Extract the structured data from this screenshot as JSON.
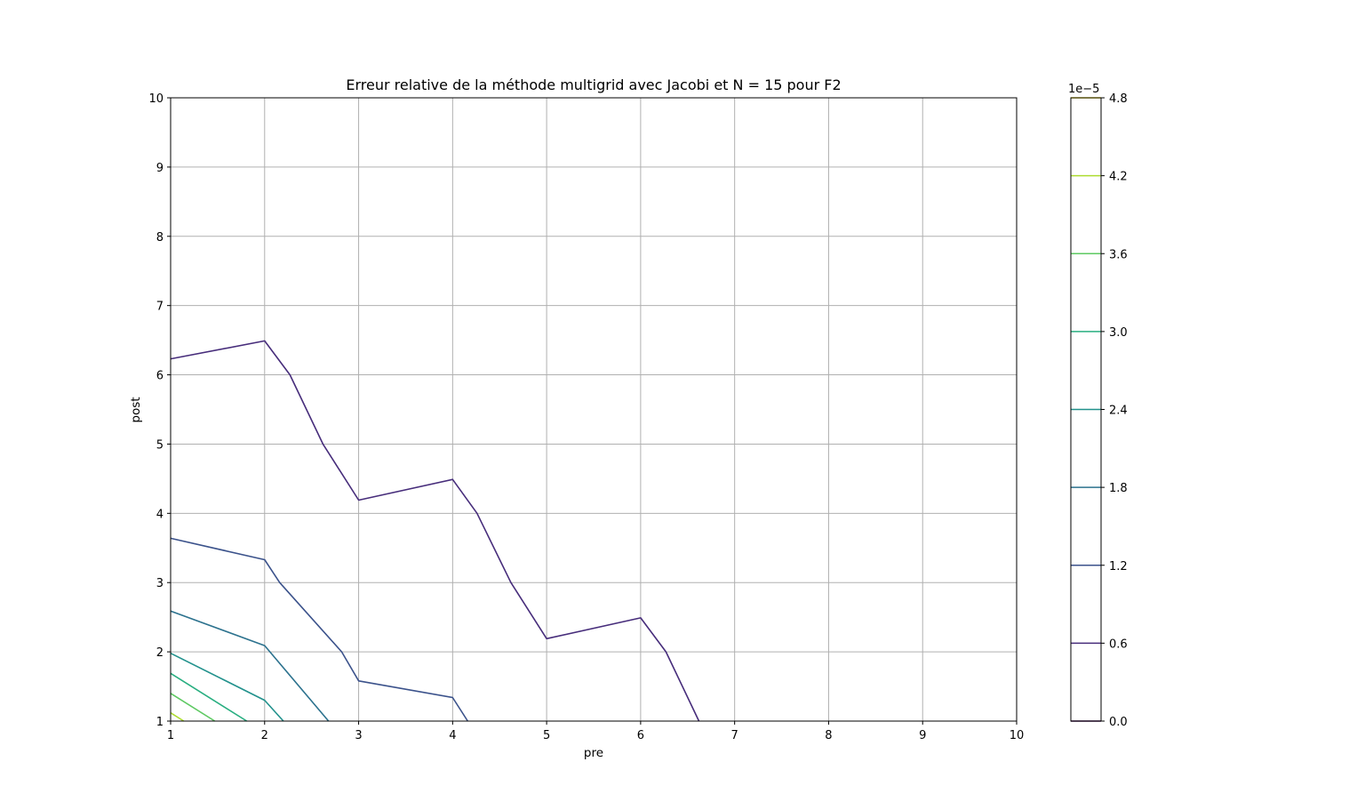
{
  "chart_data": {
    "type": "contour",
    "title": "Erreur relative de la méthode multigrid avec Jacobi et N = 15 pour F2",
    "xlabel": "pre",
    "ylabel": "post",
    "xlim": [
      1,
      10
    ],
    "ylim": [
      1,
      10
    ],
    "xticks": [
      1,
      2,
      3,
      4,
      5,
      6,
      7,
      8,
      9,
      10
    ],
    "yticks": [
      1,
      2,
      3,
      4,
      5,
      6,
      7,
      8,
      9,
      10
    ],
    "grid": true,
    "colorbar": {
      "offset_text": "1e−5",
      "levels": [
        0.0,
        0.6,
        1.2,
        1.8,
        2.4,
        3.0,
        3.6,
        4.2,
        4.8
      ],
      "tick_labels": [
        "0.0",
        "0.6",
        "1.2",
        "1.8",
        "2.4",
        "3.0",
        "3.6",
        "4.2",
        "4.8"
      ],
      "colors": [
        "#440154",
        "#472d7b",
        "#3b528b",
        "#2c728e",
        "#21918c",
        "#28ae80",
        "#5ec962",
        "#addc30",
        "#fde725"
      ]
    },
    "series": [
      {
        "level": 0.6,
        "color": "#472d7b",
        "points": [
          [
            1,
            6.23
          ],
          [
            2,
            6.49
          ],
          [
            2.27,
            6.0
          ],
          [
            2.62,
            5.0
          ],
          [
            3,
            4.19
          ],
          [
            4,
            4.49
          ],
          [
            4.26,
            4.0
          ],
          [
            4.62,
            3.0
          ],
          [
            5,
            2.19
          ],
          [
            6,
            2.49
          ],
          [
            6.27,
            2.0
          ],
          [
            6.62,
            1.0
          ]
        ]
      },
      {
        "level": 1.2,
        "color": "#3b528b",
        "points": [
          [
            1,
            3.64
          ],
          [
            2,
            3.33
          ],
          [
            2.16,
            3.0
          ],
          [
            2.82,
            2.0
          ],
          [
            3,
            1.58
          ],
          [
            4,
            1.34
          ],
          [
            4.16,
            1.0
          ]
        ]
      },
      {
        "level": 1.8,
        "color": "#2c728e",
        "points": [
          [
            1,
            2.59
          ],
          [
            2,
            2.09
          ],
          [
            2.68,
            1.0
          ]
        ]
      },
      {
        "level": 2.4,
        "color": "#21918c",
        "points": [
          [
            1,
            1.98
          ],
          [
            2,
            1.3
          ],
          [
            2.2,
            1.0
          ]
        ]
      },
      {
        "level": 3.0,
        "color": "#28ae80",
        "points": [
          [
            1,
            1.69
          ],
          [
            1.81,
            1.0
          ]
        ]
      },
      {
        "level": 3.6,
        "color": "#5ec962",
        "points": [
          [
            1,
            1.4
          ],
          [
            1.47,
            1.0
          ]
        ]
      },
      {
        "level": 4.2,
        "color": "#addc30",
        "points": [
          [
            1,
            1.12
          ],
          [
            1.14,
            1.0
          ]
        ]
      }
    ]
  }
}
